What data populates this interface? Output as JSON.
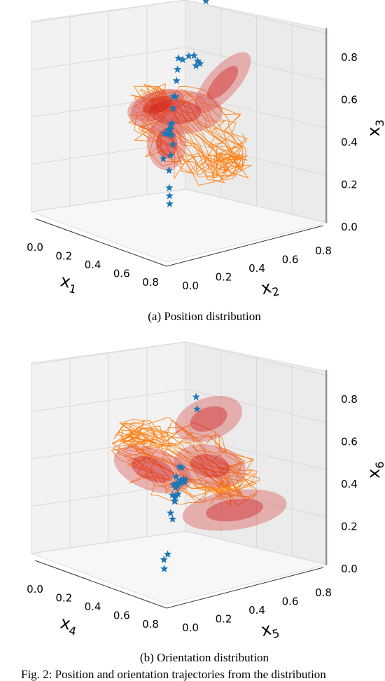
{
  "figure_caption": "Fig. 2: Position and orientation trajectories from the distribution",
  "chart_data": [
    {
      "type": "scatter",
      "title": "",
      "subfigure_caption": "(a) Position distribution",
      "axes": {
        "x": {
          "label": "x",
          "sub": "1",
          "ticks": [
            "0.0",
            "0.2",
            "0.4",
            "0.6",
            "0.8"
          ],
          "range": [
            0,
            0.9
          ]
        },
        "y": {
          "label": "x",
          "sub": "2",
          "ticks": [
            "0.0",
            "0.2",
            "0.4",
            "0.6",
            "0.8"
          ],
          "range": [
            0,
            0.9
          ]
        },
        "z": {
          "label": "x",
          "sub": "3",
          "ticks": [
            "0.0",
            "0.2",
            "0.4",
            "0.6",
            "0.8"
          ],
          "range": [
            0,
            0.9
          ]
        }
      },
      "grid": true,
      "colors": {
        "points": "#1f77b4",
        "trajectories": "#ff7f0e",
        "ellipsoids": "#d9534f",
        "mean": "#cc0000"
      },
      "series": [
        {
          "kind": "demonstration points",
          "marker": "star",
          "points": [
            [
              0.1,
              0.05,
              0.55
            ],
            [
              0.15,
              0.05,
              0.52
            ],
            [
              0.2,
              0.1,
              0.6
            ],
            [
              0.18,
              0.12,
              0.62
            ],
            [
              0.22,
              0.14,
              0.58
            ],
            [
              0.24,
              0.18,
              0.56
            ],
            [
              0.26,
              0.2,
              0.6
            ],
            [
              0.3,
              0.24,
              0.64
            ],
            [
              0.32,
              0.26,
              0.68
            ],
            [
              0.35,
              0.3,
              0.66
            ],
            [
              0.4,
              0.35,
              0.7
            ],
            [
              0.45,
              0.4,
              0.72
            ],
            [
              0.5,
              0.45,
              0.74
            ],
            [
              0.55,
              0.52,
              0.7
            ],
            [
              0.6,
              0.6,
              0.68
            ],
            [
              0.7,
              0.72,
              0.62
            ],
            [
              0.72,
              0.76,
              0.58
            ],
            [
              0.75,
              0.8,
              0.55
            ],
            [
              0.8,
              0.82,
              0.52
            ],
            [
              0.62,
              0.72,
              0.88
            ],
            [
              0.45,
              0.35,
              0.3
            ],
            [
              0.46,
              0.36,
              0.22
            ],
            [
              0.47,
              0.37,
              0.18
            ],
            [
              0.48,
              0.38,
              0.14
            ],
            [
              0.46,
              0.38,
              0.4
            ],
            [
              0.44,
              0.34,
              0.48
            ],
            [
              0.4,
              0.3,
              0.5
            ],
            [
              0.36,
              0.28,
              0.54
            ]
          ]
        },
        {
          "kind": "GMM components",
          "shape": "ellipsoid",
          "count": 4
        },
        {
          "kind": "reproduced trajectories",
          "shape": "line",
          "count": 6
        }
      ]
    },
    {
      "type": "scatter",
      "title": "",
      "subfigure_caption": "(b) Orientation distribution",
      "axes": {
        "x": {
          "label": "x",
          "sub": "4",
          "ticks": [
            "0.0",
            "0.2",
            "0.4",
            "0.6",
            "0.8"
          ],
          "range": [
            0,
            0.9
          ]
        },
        "y": {
          "label": "x",
          "sub": "5",
          "ticks": [
            "0.0",
            "0.2",
            "0.4",
            "0.6",
            "0.8"
          ],
          "range": [
            0,
            0.9
          ]
        },
        "z": {
          "label": "x",
          "sub": "6",
          "ticks": [
            "0.0",
            "0.2",
            "0.4",
            "0.6",
            "0.8"
          ],
          "range": [
            0,
            0.9
          ]
        }
      },
      "grid": true,
      "colors": {
        "points": "#1f77b4",
        "trajectories": "#ff7f0e",
        "ellipsoids": "#d9534f",
        "mean": "#cc0000"
      },
      "series": [
        {
          "kind": "demonstration points",
          "marker": "star",
          "points": [
            [
              0.05,
              0.05,
              0.58
            ],
            [
              0.1,
              0.08,
              0.55
            ],
            [
              0.12,
              0.1,
              0.62
            ],
            [
              0.15,
              0.12,
              0.5
            ],
            [
              0.18,
              0.12,
              0.44
            ],
            [
              0.2,
              0.15,
              0.4
            ],
            [
              0.22,
              0.18,
              0.48
            ],
            [
              0.25,
              0.2,
              0.52
            ],
            [
              0.28,
              0.22,
              0.46
            ],
            [
              0.3,
              0.25,
              0.42
            ],
            [
              0.35,
              0.3,
              0.45
            ],
            [
              0.4,
              0.35,
              0.44
            ],
            [
              0.45,
              0.4,
              0.4
            ],
            [
              0.5,
              0.45,
              0.38
            ],
            [
              0.55,
              0.5,
              0.36
            ],
            [
              0.6,
              0.55,
              0.34
            ],
            [
              0.65,
              0.6,
              0.3
            ],
            [
              0.7,
              0.65,
              0.28
            ],
            [
              0.75,
              0.7,
              0.26
            ],
            [
              0.8,
              0.75,
              0.22
            ],
            [
              0.85,
              0.8,
              0.2
            ],
            [
              0.12,
              0.05,
              0.3
            ],
            [
              0.18,
              0.08,
              0.25
            ],
            [
              0.2,
              0.1,
              0.2
            ],
            [
              0.55,
              0.6,
              0.7
            ],
            [
              0.6,
              0.65,
              0.62
            ],
            [
              0.25,
              0.25,
              0.58
            ],
            [
              0.3,
              0.28,
              0.56
            ]
          ]
        },
        {
          "kind": "GMM components",
          "shape": "ellipsoid",
          "count": 4
        },
        {
          "kind": "reproduced trajectories",
          "shape": "line",
          "count": 6
        }
      ]
    }
  ]
}
